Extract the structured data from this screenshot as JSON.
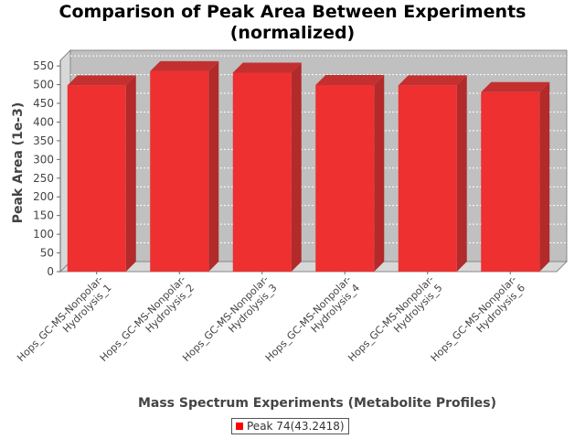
{
  "chart_data": {
    "type": "bar",
    "title_line1": "Comparison of Peak Area Between Experiments",
    "title_line2": "(normalized)",
    "xlabel": "Mass Spectrum Experiments (Metabolite Profiles)",
    "ylabel": "Peak Area (1e-3)",
    "ylim": [
      0,
      565
    ],
    "yticks": [
      0,
      50,
      100,
      150,
      200,
      250,
      300,
      350,
      400,
      450,
      500,
      550
    ],
    "categories": [
      [
        "Hops_GC-MS-Nonpolar-",
        "Hydrolysis_1"
      ],
      [
        "Hops_GC-MS-Nonpolar-",
        "Hydrolysis_2"
      ],
      [
        "Hops_GC-MS-Nonpolar-",
        "Hydrolysis_3"
      ],
      [
        "Hops_GC-MS-Nonpolar-",
        "Hydrolysis_4"
      ],
      [
        "Hops_GC-MS-Nonpolar-",
        "Hydrolysis_5"
      ],
      [
        "Hops_GC-MS-Nonpolar-",
        "Hydrolysis_6"
      ]
    ],
    "series": [
      {
        "name": "Peak 74(43.2418)",
        "color": "#ff0000",
        "values": [
          498,
          536,
          532,
          499,
          498,
          480
        ]
      }
    ],
    "legend_position": "bottom",
    "grid": true,
    "style": "3d"
  }
}
